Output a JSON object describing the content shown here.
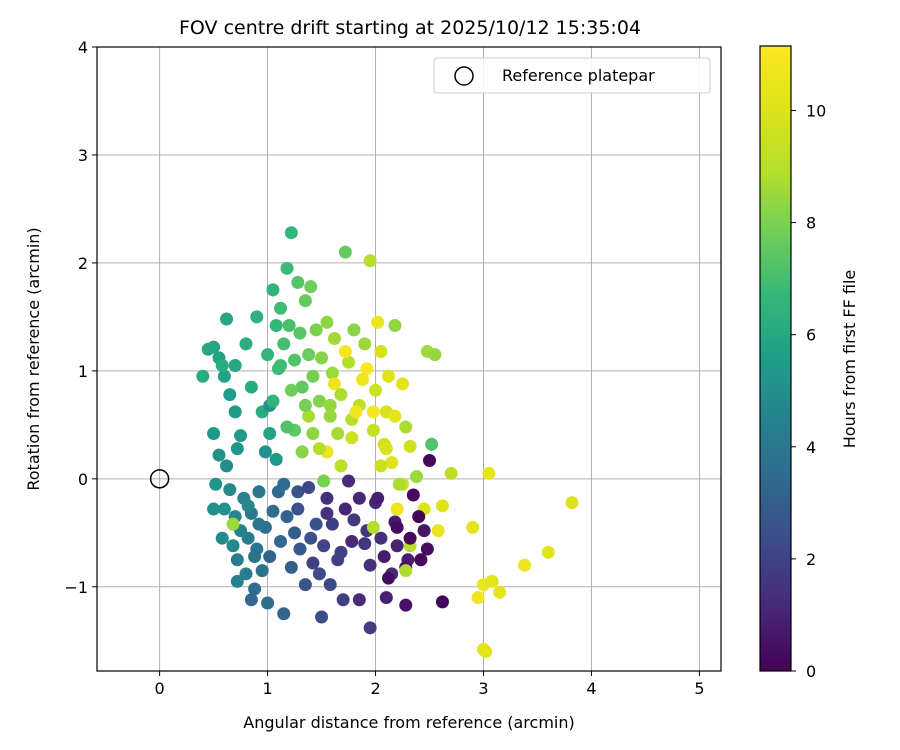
{
  "chart_data": {
    "type": "scatter",
    "title": "FOV centre drift starting at 2025/10/12 15:35:04",
    "xlabel": "Angular distance from reference (arcmin)",
    "ylabel": "Rotation from reference (arcmin)",
    "colorbar_label": "Hours from first FF file",
    "xlim": [
      -0.58,
      5.2
    ],
    "ylim": [
      -1.78,
      4.0
    ],
    "xticks": [
      0,
      1,
      2,
      3,
      4,
      5
    ],
    "yticks": [
      -1,
      0,
      1,
      2,
      3,
      4
    ],
    "color_range": [
      0,
      11.15
    ],
    "colorbar_ticks": [
      0,
      2,
      4,
      6,
      8,
      10
    ],
    "grid": true,
    "legend": {
      "position": "top-right",
      "label": "Reference platepar"
    },
    "reference_point": {
      "x": 0,
      "y": 0
    },
    "points": [
      [
        2.5,
        0.17,
        0.2
      ],
      [
        2.62,
        -1.14,
        0.1
      ],
      [
        2.48,
        -0.65,
        0.4
      ],
      [
        2.45,
        -0.48,
        0.6
      ],
      [
        2.35,
        -0.15,
        0.3
      ],
      [
        2.3,
        -0.75,
        0.8
      ],
      [
        2.28,
        -1.17,
        0.5
      ],
      [
        2.2,
        -0.62,
        1.0
      ],
      [
        2.18,
        -0.4,
        0.7
      ],
      [
        2.15,
        -0.88,
        1.2
      ],
      [
        2.1,
        -1.1,
        0.9
      ],
      [
        2.05,
        -0.55,
        1.4
      ],
      [
        2.0,
        -0.22,
        1.1
      ],
      [
        1.95,
        -0.8,
        1.5
      ],
      [
        1.95,
        -1.38,
        1.8
      ],
      [
        1.9,
        -0.6,
        1.6
      ],
      [
        1.85,
        -1.12,
        1.3
      ],
      [
        1.8,
        -0.38,
        1.7
      ],
      [
        1.78,
        -0.58,
        1.2
      ],
      [
        1.72,
        -0.28,
        1.0
      ],
      [
        1.7,
        -1.12,
        1.9
      ],
      [
        1.65,
        -0.75,
        2.0
      ],
      [
        1.6,
        -0.42,
        1.8
      ],
      [
        1.58,
        -0.98,
        2.2
      ],
      [
        1.55,
        -0.18,
        1.4
      ],
      [
        1.52,
        -0.62,
        2.1
      ],
      [
        1.5,
        -1.28,
        2.4
      ],
      [
        1.48,
        -0.88,
        2.3
      ],
      [
        1.45,
        -0.42,
        2.5
      ],
      [
        1.42,
        -0.78,
        2.0
      ],
      [
        1.4,
        -0.55,
        2.6
      ],
      [
        1.35,
        -0.98,
        2.7
      ],
      [
        1.3,
        -0.65,
        2.8
      ],
      [
        1.28,
        -0.28,
        2.5
      ],
      [
        1.25,
        -0.5,
        2.9
      ],
      [
        1.22,
        -0.82,
        3.0
      ],
      [
        1.18,
        -0.35,
        3.1
      ],
      [
        1.15,
        -1.25,
        3.2
      ],
      [
        1.12,
        -0.58,
        3.3
      ],
      [
        1.1,
        -0.12,
        3.4
      ],
      [
        1.05,
        -0.3,
        3.5
      ],
      [
        1.02,
        -0.72,
        3.2
      ],
      [
        1.0,
        -1.15,
        3.6
      ],
      [
        0.98,
        -0.45,
        3.7
      ],
      [
        0.95,
        -0.85,
        3.8
      ],
      [
        0.92,
        -0.12,
        3.9
      ],
      [
        0.9,
        -0.65,
        4.0
      ],
      [
        0.88,
        -1.02,
        3.5
      ],
      [
        0.85,
        -0.32,
        4.1
      ],
      [
        0.82,
        -0.55,
        4.2
      ],
      [
        0.8,
        -0.88,
        4.3
      ],
      [
        0.78,
        -0.18,
        4.4
      ],
      [
        0.75,
        -0.48,
        4.5
      ],
      [
        0.72,
        -0.75,
        4.2
      ],
      [
        0.7,
        -0.35,
        4.6
      ],
      [
        0.68,
        -0.62,
        4.7
      ],
      [
        0.65,
        -0.1,
        4.8
      ],
      [
        0.62,
        0.12,
        4.9
      ],
      [
        0.6,
        -0.28,
        5.0
      ],
      [
        0.58,
        -0.55,
        4.8
      ],
      [
        0.55,
        0.22,
        5.1
      ],
      [
        0.52,
        -0.05,
        5.2
      ],
      [
        0.5,
        0.42,
        5.3
      ],
      [
        0.5,
        -0.28,
        5.0
      ],
      [
        0.72,
        -0.95,
        4.4
      ],
      [
        0.75,
        0.4,
        5.4
      ],
      [
        0.7,
        0.62,
        5.5
      ],
      [
        0.65,
        0.78,
        5.6
      ],
      [
        0.6,
        0.95,
        5.7
      ],
      [
        0.55,
        1.12,
        5.8
      ],
      [
        0.5,
        1.22,
        5.9
      ],
      [
        0.45,
        1.2,
        6.0
      ],
      [
        0.4,
        0.95,
        6.1
      ],
      [
        0.62,
        1.48,
        5.9
      ],
      [
        0.58,
        1.05,
        6.2
      ],
      [
        0.7,
        1.05,
        6.0
      ],
      [
        0.8,
        1.25,
        6.3
      ],
      [
        0.85,
        0.85,
        6.1
      ],
      [
        0.9,
        1.5,
        6.4
      ],
      [
        0.95,
        0.62,
        6.2
      ],
      [
        1.0,
        1.15,
        6.5
      ],
      [
        1.02,
        0.68,
        5.0
      ],
      [
        1.05,
        1.75,
        6.6
      ],
      [
        1.08,
        1.42,
        6.7
      ],
      [
        1.1,
        1.02,
        6.8
      ],
      [
        1.12,
        1.58,
        6.9
      ],
      [
        1.15,
        1.25,
        7.0
      ],
      [
        1.18,
        1.95,
        6.8
      ],
      [
        1.2,
        1.42,
        7.1
      ],
      [
        1.22,
        2.28,
        6.6
      ],
      [
        1.25,
        1.1,
        7.2
      ],
      [
        1.28,
        1.82,
        7.3
      ],
      [
        1.3,
        1.35,
        7.4
      ],
      [
        1.32,
        0.85,
        7.5
      ],
      [
        1.35,
        1.65,
        7.6
      ],
      [
        1.38,
        1.15,
        7.7
      ],
      [
        1.4,
        1.78,
        7.8
      ],
      [
        1.42,
        0.95,
        7.9
      ],
      [
        1.45,
        1.38,
        8.0
      ],
      [
        1.48,
        0.72,
        8.1
      ],
      [
        1.5,
        1.12,
        8.2
      ],
      [
        1.55,
        1.45,
        8.3
      ],
      [
        1.58,
        0.58,
        8.4
      ],
      [
        1.6,
        0.98,
        8.5
      ],
      [
        1.62,
        1.3,
        8.6
      ],
      [
        1.65,
        0.42,
        8.7
      ],
      [
        1.68,
        0.78,
        8.8
      ],
      [
        1.72,
        2.1,
        7.6
      ],
      [
        1.75,
        1.08,
        8.9
      ],
      [
        1.78,
        0.55,
        9.0
      ],
      [
        1.8,
        1.38,
        8.2
      ],
      [
        1.85,
        0.68,
        9.2
      ],
      [
        1.9,
        1.25,
        8.5
      ],
      [
        1.95,
        2.02,
        9.0
      ],
      [
        1.98,
        0.45,
        9.3
      ],
      [
        2.0,
        0.82,
        9.5
      ],
      [
        2.05,
        1.18,
        9.8
      ],
      [
        2.08,
        0.32,
        9.6
      ],
      [
        2.1,
        0.62,
        9.9
      ],
      [
        2.12,
        0.95,
        10.1
      ],
      [
        2.15,
        0.15,
        10.2
      ],
      [
        2.18,
        0.58,
        10.4
      ],
      [
        2.2,
        -0.28,
        10.6
      ],
      [
        2.25,
        0.88,
        10.3
      ],
      [
        2.28,
        0.48,
        8.8
      ],
      [
        2.32,
        -0.62,
        9.0
      ],
      [
        2.38,
        0.02,
        8.5
      ],
      [
        2.45,
        -0.28,
        10.0
      ],
      [
        2.48,
        1.18,
        8.6
      ],
      [
        2.55,
        1.15,
        8.4
      ],
      [
        2.58,
        -0.48,
        10.5
      ],
      [
        2.62,
        -0.25,
        10.1
      ],
      [
        2.7,
        0.05,
        9.2
      ],
      [
        2.9,
        -0.45,
        10.3
      ],
      [
        3.05,
        0.05,
        10.4
      ],
      [
        3.0,
        -0.98,
        10.6
      ],
      [
        3.08,
        -0.95,
        10.2
      ],
      [
        2.95,
        -1.1,
        10.7
      ],
      [
        3.15,
        -1.05,
        10.3
      ],
      [
        3.0,
        -1.58,
        10.4
      ],
      [
        3.02,
        -1.6,
        10.2
      ],
      [
        3.38,
        -0.8,
        10.5
      ],
      [
        3.6,
        -0.68,
        10.2
      ],
      [
        3.82,
        -0.22,
        10.0
      ],
      [
        2.18,
        1.42,
        8.3
      ],
      [
        2.02,
        1.45,
        10.5
      ],
      [
        1.92,
        1.02,
        11.0
      ],
      [
        1.82,
        0.62,
        10.8
      ],
      [
        1.72,
        1.18,
        10.9
      ],
      [
        1.62,
        0.88,
        10.6
      ],
      [
        1.55,
        0.25,
        10.5
      ],
      [
        1.48,
        0.28,
        9.0
      ],
      [
        1.38,
        0.58,
        8.7
      ],
      [
        1.32,
        0.25,
        8.2
      ],
      [
        1.25,
        0.45,
        7.5
      ],
      [
        1.22,
        0.82,
        7.8
      ],
      [
        1.18,
        0.48,
        7.2
      ],
      [
        1.12,
        1.05,
        6.9
      ],
      [
        1.05,
        0.72,
        6.5
      ],
      [
        1.02,
        0.42,
        5.8
      ],
      [
        0.98,
        0.25,
        5.0
      ],
      [
        0.92,
        -0.42,
        4.0
      ],
      [
        0.88,
        -0.72,
        3.8
      ],
      [
        0.85,
        -1.12,
        3.4
      ],
      [
        0.82,
        -0.25,
        4.6
      ],
      [
        0.68,
        -0.42,
        8.5
      ],
      [
        0.72,
        0.28,
        5.2
      ],
      [
        1.08,
        0.18,
        5.4
      ],
      [
        1.15,
        -0.05,
        3.5
      ],
      [
        1.28,
        -0.12,
        2.6
      ],
      [
        1.38,
        -0.08,
        2.2
      ],
      [
        1.55,
        -0.32,
        1.5
      ],
      [
        1.68,
        -0.68,
        1.9
      ],
      [
        1.75,
        -0.02,
        1.2
      ],
      [
        1.85,
        -0.18,
        1.1
      ],
      [
        1.92,
        -0.48,
        1.6
      ],
      [
        2.02,
        -0.18,
        0.9
      ],
      [
        2.08,
        -0.72,
        0.8
      ],
      [
        2.12,
        -0.92,
        0.4
      ],
      [
        2.2,
        -0.45,
        0.3
      ],
      [
        2.28,
        -0.82,
        0.5
      ],
      [
        2.32,
        -0.55,
        0.2
      ],
      [
        2.4,
        -0.35,
        0.1
      ],
      [
        2.42,
        -0.75,
        0.2
      ],
      [
        2.25,
        -0.05,
        9.3
      ],
      [
        2.32,
        0.3,
        9.7
      ],
      [
        2.05,
        0.12,
        9.5
      ],
      [
        1.98,
        0.62,
        10.9
      ],
      [
        1.88,
        0.92,
        10.6
      ],
      [
        1.78,
        0.38,
        9.6
      ],
      [
        1.68,
        0.12,
        9.2
      ],
      [
        1.58,
        0.68,
        8.4
      ],
      [
        1.52,
        -0.02,
        8.0
      ],
      [
        1.42,
        0.42,
        8.3
      ],
      [
        1.35,
        0.68,
        7.9
      ],
      [
        2.52,
        0.32,
        7.2
      ],
      [
        2.22,
        -0.05,
        8.8
      ],
      [
        2.28,
        -0.85,
        8.8
      ],
      [
        2.1,
        0.28,
        9.9
      ],
      [
        1.98,
        -0.45,
        8.9
      ]
    ]
  }
}
